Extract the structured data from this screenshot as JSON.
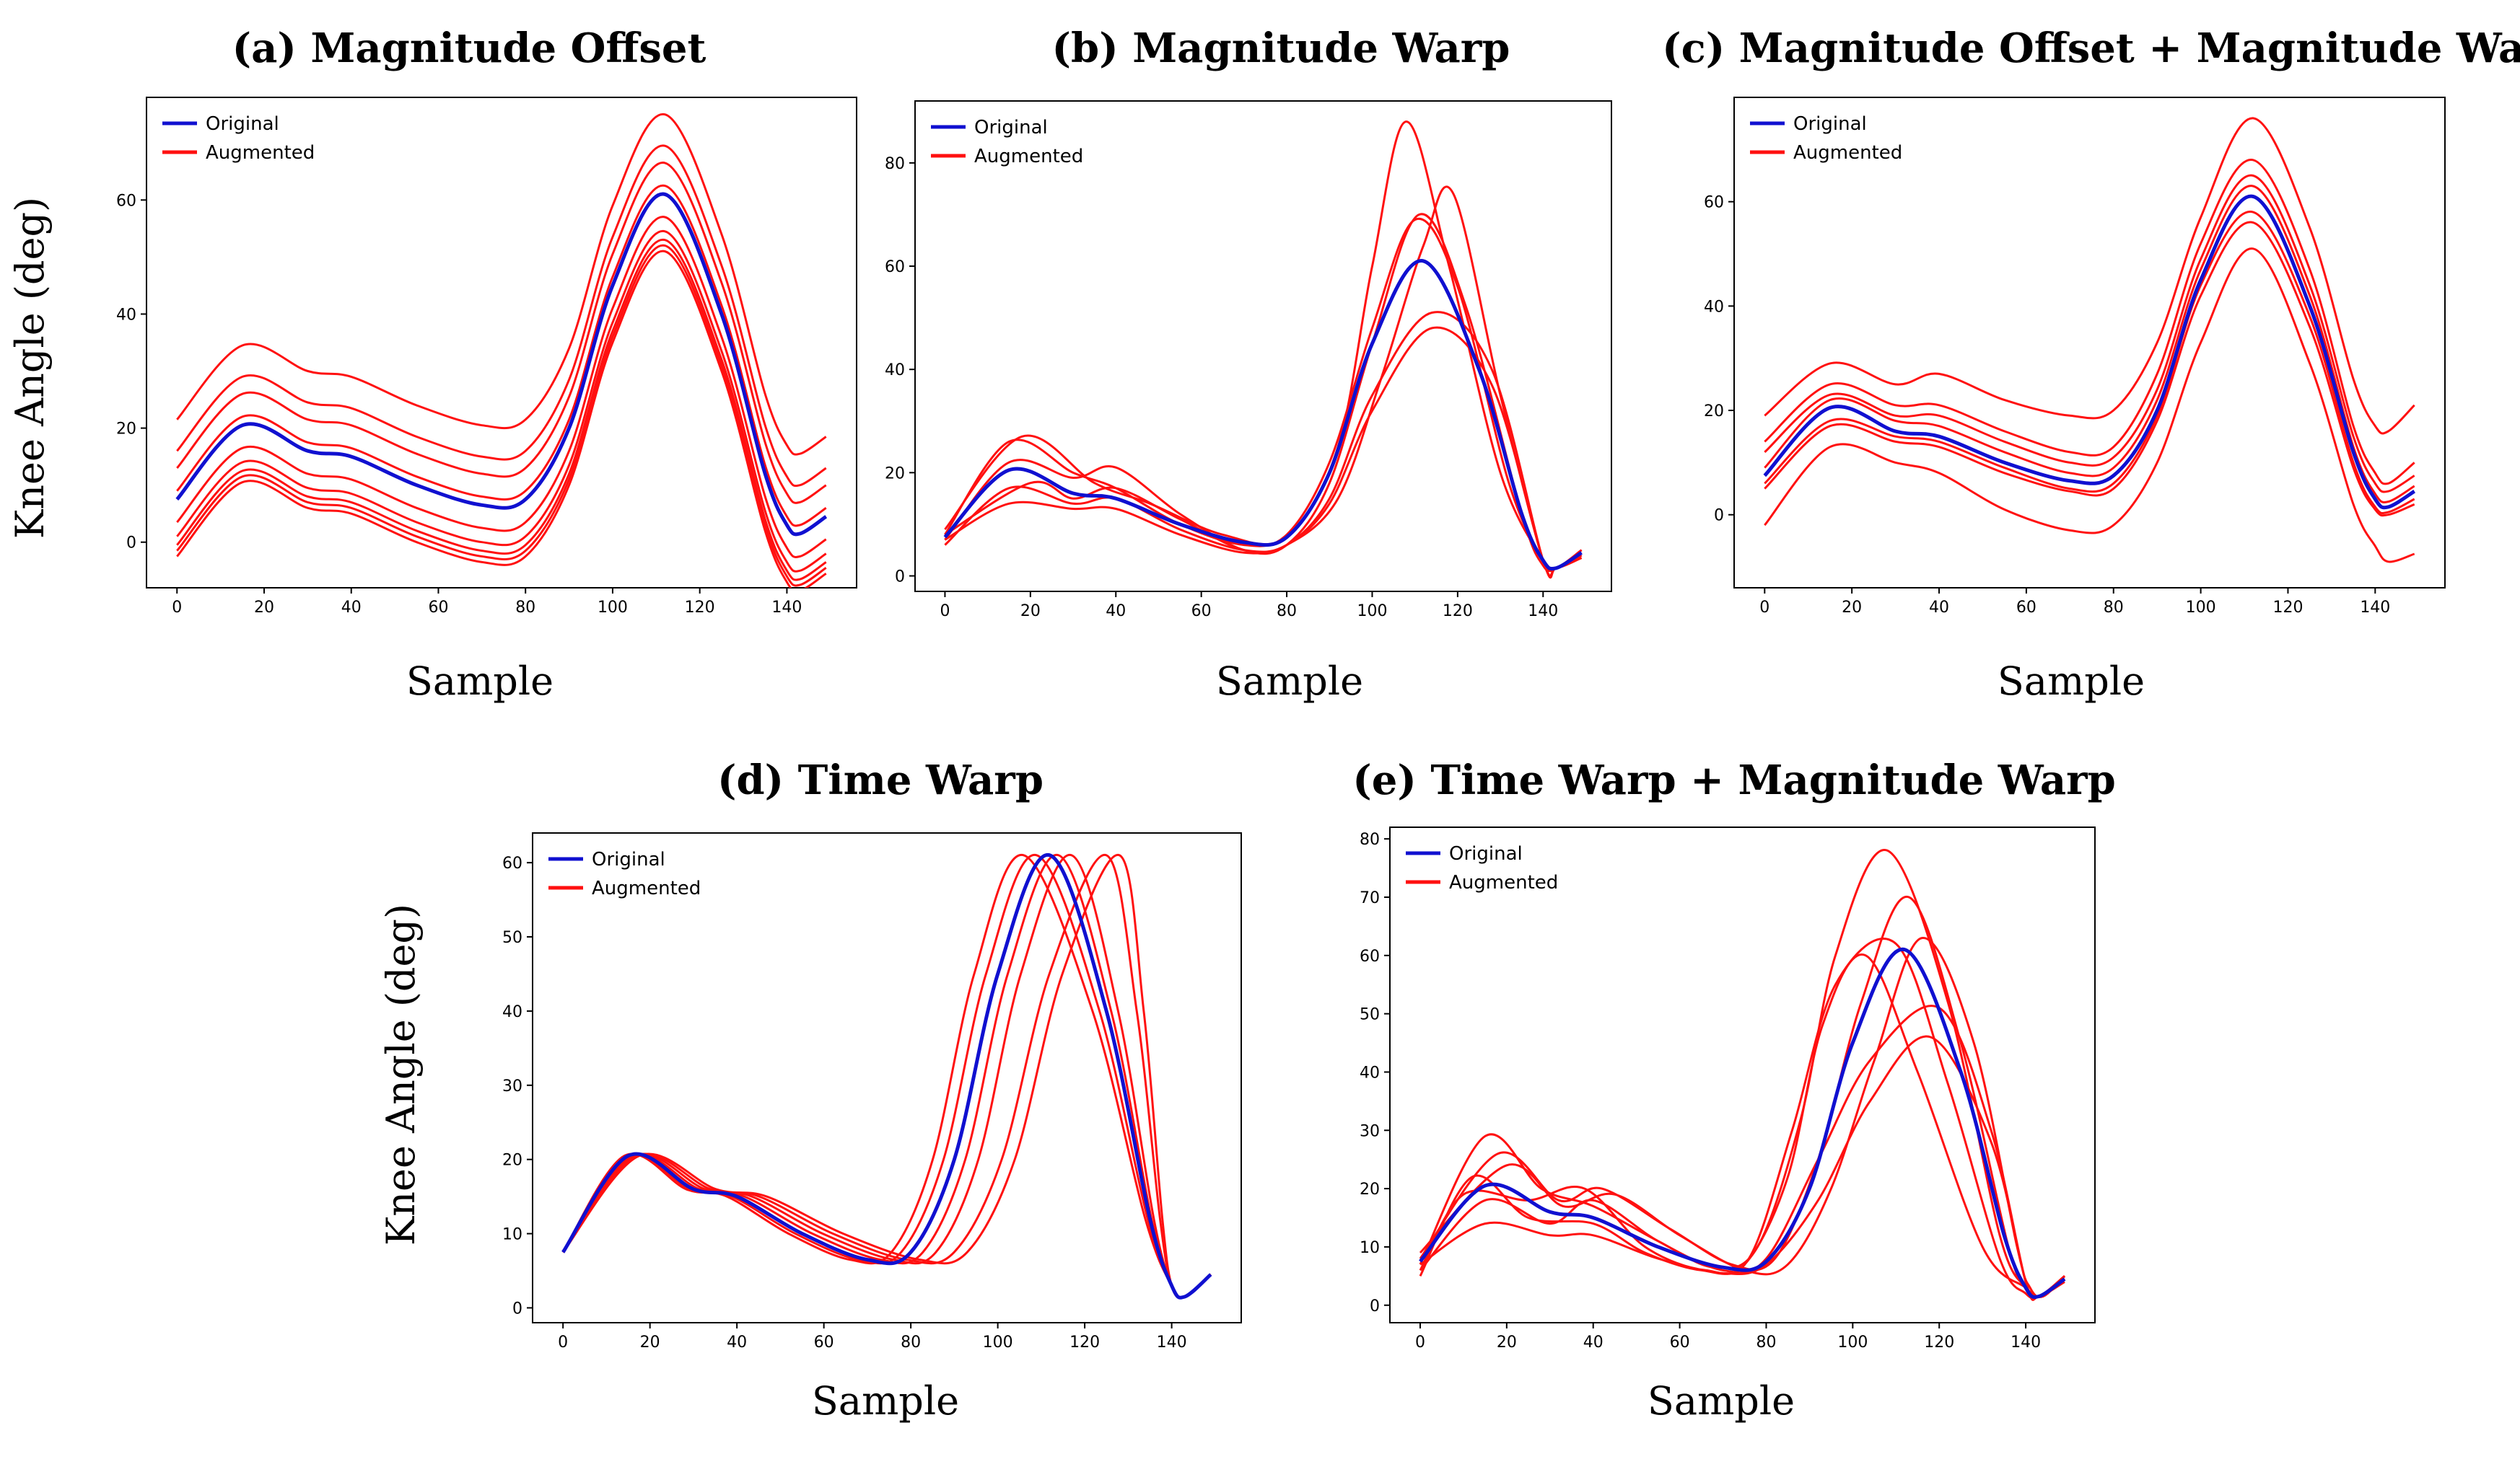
{
  "chart_data": [
    {
      "type": "line",
      "title": "(a) Magnitude Offset",
      "xlabel": "Sample",
      "ylabel": "Knee Angle (deg)",
      "xlim": [
        -7,
        156
      ],
      "ylim": [
        -8,
        78
      ],
      "xticks": [
        0,
        20,
        40,
        60,
        80,
        100,
        120,
        140
      ],
      "yticks": [
        0,
        20,
        40,
        60
      ],
      "legend": [
        "Original",
        "Augmented"
      ],
      "legend_position": "top-left",
      "grid": false,
      "original": {
        "name": "Original",
        "color": "#1010d0",
        "x": [
          0,
          15,
          30,
          40,
          55,
          70,
          80,
          90,
          100,
          112,
          125,
          135,
          140,
          143,
          149
        ],
        "y": [
          7.5,
          20.5,
          16,
          15,
          10,
          6.5,
          7.5,
          20,
          45,
          61,
          40,
          12,
          3,
          1.5,
          4.5
        ]
      },
      "augmented": {
        "name": "Augmented",
        "color": "#ff1010",
        "offsets": [
          14,
          8.5,
          5.5,
          1.5,
          -4,
          -6.5,
          -8,
          -9,
          -10
        ]
      }
    },
    {
      "type": "line",
      "title": "(b) Magnitude Warp",
      "xlabel": "Sample",
      "ylabel": "",
      "xlim": [
        -7,
        156
      ],
      "ylim": [
        -3,
        92
      ],
      "xticks": [
        0,
        20,
        40,
        60,
        80,
        100,
        120,
        140
      ],
      "yticks": [
        0,
        20,
        40,
        60,
        80
      ],
      "legend": [
        "Original",
        "Augmented"
      ],
      "legend_position": "top-left",
      "grid": false,
      "original": {
        "name": "Original",
        "color": "#1010d0",
        "x": [
          0,
          15,
          30,
          40,
          55,
          70,
          80,
          90,
          100,
          112,
          125,
          135,
          140,
          143,
          149
        ],
        "y": [
          7.5,
          20.5,
          16,
          15,
          10,
          6.5,
          7.5,
          20,
          45,
          61,
          40,
          12,
          3,
          1.5,
          4.5
        ]
      },
      "augmented": {
        "name": "Augmented",
        "color": "#ff1010",
        "series": [
          {
            "x": [
              0,
              18,
              35,
              48,
              65,
              80,
              92,
              100,
              108,
              118,
              130,
              140,
              143,
              149
            ],
            "y": [
              9,
              27,
              18,
              14,
              8,
              7.5,
              25,
              60,
              88,
              60,
              20,
              3,
              1.5,
              5
            ]
          },
          {
            "x": [
              0,
              15,
              30,
              40,
              55,
              70,
              80,
              90,
              100,
              110,
              120,
              132,
              140,
              143,
              149
            ],
            "y": [
              8,
              26,
              20,
              17,
              10,
              6,
              8,
              22,
              48,
              69,
              56,
              18,
              3,
              1.5,
              4
            ]
          },
          {
            "x": [
              0,
              15,
              30,
              40,
              55,
              70,
              80,
              90,
              100,
              111,
              122,
              135,
              140,
              143,
              149
            ],
            "y": [
              7,
              22,
              19,
              21,
              12,
              5,
              6,
              18,
              45,
              70,
              52,
              12,
              2,
              1.5,
              4
            ]
          },
          {
            "x": [
              0,
              20,
              30,
              40,
              55,
              70,
              80,
              92,
              102,
              112,
              119,
              130,
              140,
              143,
              149
            ],
            "y": [
              8,
              18,
              15,
              17,
              11,
              5,
              6,
              15,
              38,
              64,
              74,
              35,
              3,
              1.5,
              5
            ]
          },
          {
            "x": [
              0,
              15,
              30,
              40,
              55,
              70,
              80,
              90,
              100,
              114,
              128,
              140,
              143,
              149
            ],
            "y": [
              6,
              17,
              14,
              15,
              9,
              5,
              6,
              15,
              35,
              51,
              40,
              3,
              1.5,
              3.5
            ]
          },
          {
            "x": [
              0,
              15,
              30,
              40,
              55,
              70,
              80,
              90,
              100,
              114,
              128,
              140,
              143,
              149
            ],
            "y": [
              7,
              14,
              13,
              13,
              8,
              4.5,
              6,
              14,
              32,
              48,
              37,
              3,
              1.5,
              3.5
            ]
          }
        ]
      }
    },
    {
      "type": "line",
      "title": "(c) Magnitude Offset + Magnitude Warp",
      "xlabel": "Sample",
      "ylabel": "",
      "xlim": [
        -7,
        156
      ],
      "ylim": [
        -14,
        80
      ],
      "xticks": [
        0,
        20,
        40,
        60,
        80,
        100,
        120,
        140
      ],
      "yticks": [
        0,
        20,
        40,
        60
      ],
      "legend": [
        "Original",
        "Augmented"
      ],
      "legend_position": "top-left",
      "grid": false,
      "original": {
        "name": "Original",
        "color": "#1010d0",
        "x": [
          0,
          15,
          30,
          40,
          55,
          70,
          80,
          90,
          100,
          112,
          125,
          135,
          140,
          143,
          149
        ],
        "y": [
          7.5,
          20.5,
          16,
          15,
          10,
          6.5,
          7.5,
          20,
          45,
          61,
          40,
          12,
          3,
          1.5,
          4.5
        ]
      },
      "augmented": {
        "name": "Augmented",
        "color": "#ff1010",
        "series": [
          {
            "x": [
              0,
              15,
              30,
              40,
              55,
              70,
              80,
              90,
              100,
              112,
              125,
              135,
              140,
              143,
              149
            ],
            "y": [
              19,
              29,
              25,
              27,
              22,
              19,
              20,
              33,
              57,
              76,
              55,
              26,
              17,
              16,
              21
            ]
          },
          {
            "x": [
              0,
              15,
              30,
              40,
              55,
              70,
              80,
              90,
              100,
              112,
              125,
              135,
              140,
              143,
              149
            ],
            "y": [
              14,
              25,
              21,
              21,
              16,
              12,
              13,
              27,
              52,
              68,
              47,
              17,
              8,
              6,
              10
            ]
          },
          {
            "x": [
              0,
              15,
              30,
              40,
              55,
              70,
              80,
              90,
              100,
              112,
              125,
              135,
              140,
              143,
              149
            ],
            "y": [
              12,
              23,
              19,
              19,
              14,
              10,
              11,
              24,
              49,
              65,
              44,
              15,
              6,
              4.5,
              7.5
            ]
          },
          {
            "x": [
              0,
              15,
              30,
              40,
              55,
              70,
              80,
              90,
              100,
              112,
              125,
              135,
              140,
              143,
              149
            ],
            "y": [
              9,
              22,
              18,
              17,
              12,
              8,
              9,
              22,
              47,
              63,
              42,
              13,
              4,
              2.5,
              5.5
            ]
          },
          {
            "x": [
              0,
              15,
              30,
              40,
              55,
              70,
              80,
              90,
              100,
              112,
              125,
              135,
              140,
              143,
              149
            ],
            "y": [
              6,
              18,
              15,
              14,
              9,
              5,
              6,
              19,
              44,
              58,
              38,
              10,
              1.5,
              0.5,
              3
            ]
          },
          {
            "x": [
              0,
              15,
              30,
              40,
              55,
              70,
              80,
              90,
              100,
              112,
              125,
              135,
              140,
              143,
              149
            ],
            "y": [
              5,
              17,
              14,
              13,
              8,
              4.5,
              5,
              18,
              42,
              56,
              36,
              9,
              1,
              0,
              2
            ]
          },
          {
            "x": [
              0,
              15,
              30,
              40,
              55,
              70,
              80,
              90,
              100,
              112,
              125,
              135,
              140,
              143,
              149
            ],
            "y": [
              -2,
              13,
              10,
              8,
              1,
              -3,
              -2,
              10,
              33,
              51,
              29,
              2,
              -6,
              -9,
              -7.5
            ]
          }
        ]
      }
    },
    {
      "type": "line",
      "title": "(d) Time Warp",
      "xlabel": "Sample",
      "ylabel": "Knee Angle (deg)",
      "xlim": [
        -7,
        156
      ],
      "ylim": [
        -2,
        64
      ],
      "xticks": [
        0,
        20,
        40,
        60,
        80,
        100,
        120,
        140
      ],
      "yticks": [
        0,
        10,
        20,
        30,
        40,
        50,
        60
      ],
      "legend": [
        "Original",
        "Augmented"
      ],
      "legend_position": "top-left",
      "grid": false,
      "original": {
        "name": "Original",
        "color": "#1010d0",
        "x": [
          0,
          15,
          30,
          40,
          55,
          70,
          80,
          90,
          100,
          112,
          125,
          135,
          140,
          143,
          149
        ],
        "y": [
          7.5,
          20.5,
          16,
          15,
          10,
          6.5,
          7.5,
          20,
          45,
          61,
          40,
          12,
          3,
          1.5,
          4.5
        ]
      },
      "augmented": {
        "name": "Augmented",
        "color": "#ff1010",
        "peak_shifts": [
          -6,
          -3,
          2,
          5,
          13,
          16
        ],
        "early_shifts": [
          -4,
          -2,
          3,
          6,
          9,
          12
        ]
      }
    },
    {
      "type": "line",
      "title": "(e) Time Warp + Magnitude Warp",
      "xlabel": "Sample",
      "ylabel": "",
      "xlim": [
        -7,
        156
      ],
      "ylim": [
        -3,
        82
      ],
      "xticks": [
        0,
        20,
        40,
        60,
        80,
        100,
        120,
        140
      ],
      "yticks": [
        0,
        10,
        20,
        30,
        40,
        50,
        60,
        70,
        80
      ],
      "legend": [
        "Original",
        "Augmented"
      ],
      "legend_position": "top-left",
      "grid": false,
      "original": {
        "name": "Original",
        "color": "#1010d0",
        "x": [
          0,
          15,
          30,
          40,
          55,
          70,
          80,
          90,
          100,
          112,
          125,
          135,
          140,
          143,
          149
        ],
        "y": [
          7.5,
          20.5,
          16,
          15,
          10,
          6.5,
          7.5,
          20,
          45,
          61,
          40,
          12,
          3,
          1.5,
          4.5
        ]
      },
      "augmented": {
        "name": "Augmented",
        "color": "#ff1010",
        "series": [
          {
            "x": [
              0,
              15,
              28,
              40,
              55,
              68,
              78,
              88,
              96,
              108,
              122,
              134,
              140,
              143,
              149
            ],
            "y": [
              7,
              29,
              20,
              17,
              11,
              6.5,
              10,
              32,
              60,
              78,
              52,
              12,
              3,
              1.5,
              5
            ]
          },
          {
            "x": [
              0,
              18,
              32,
              42,
              58,
              72,
              82,
              92,
              102,
              113,
              125,
              136,
              140,
              143,
              149
            ],
            "y": [
              8,
              26,
              18,
              20,
              13,
              7,
              8,
              25,
              52,
              70,
              45,
              10,
              3,
              1.5,
              5
            ]
          },
          {
            "x": [
              0,
              12,
              25,
              40,
              52,
              65,
              75,
              85,
              93,
              103,
              115,
              130,
              140,
              143,
              149
            ],
            "y": [
              5,
              22,
              15,
              14,
              9,
              6,
              7,
              22,
              48,
              60,
              40,
              10,
              3,
              1.5,
              4
            ]
          },
          {
            "x": [
              0,
              20,
              33,
              45,
              60,
              75,
              85,
              95,
              105,
              116,
              128,
              138,
              141,
              144,
              149
            ],
            "y": [
              9,
              24,
              17,
              19,
              12,
              6,
              7,
              20,
              42,
              63,
              45,
              10,
              3,
              1.5,
              5
            ]
          },
          {
            "x": [
              0,
              15,
              30,
              40,
              55,
              70,
              80,
              92,
              104,
              120,
              132,
              140,
              143,
              149
            ],
            "y": [
              6,
              18,
              14,
              18,
              11,
              6,
              8,
              25,
              42,
              51,
              30,
              4,
              1.5,
              5
            ]
          },
          {
            "x": [
              0,
              15,
              30,
              40,
              55,
              70,
              80,
              92,
              104,
              118,
              132,
              140,
              143,
              149
            ],
            "y": [
              7,
              14,
              12,
              12,
              8,
              5.5,
              7,
              18,
              35,
              46,
              28,
              4,
              1.5,
              4.5
            ]
          },
          {
            "x": [
              0,
              10,
              25,
              38,
              52,
              66,
              76,
              86,
              96,
              110,
              122,
              134,
              140,
              143,
              149
            ],
            "y": [
              6,
              19,
              18,
              20,
              10,
              6,
              8,
              30,
              55,
              62,
              38,
              8,
              2,
              1.5,
              4.5
            ]
          }
        ]
      }
    }
  ]
}
